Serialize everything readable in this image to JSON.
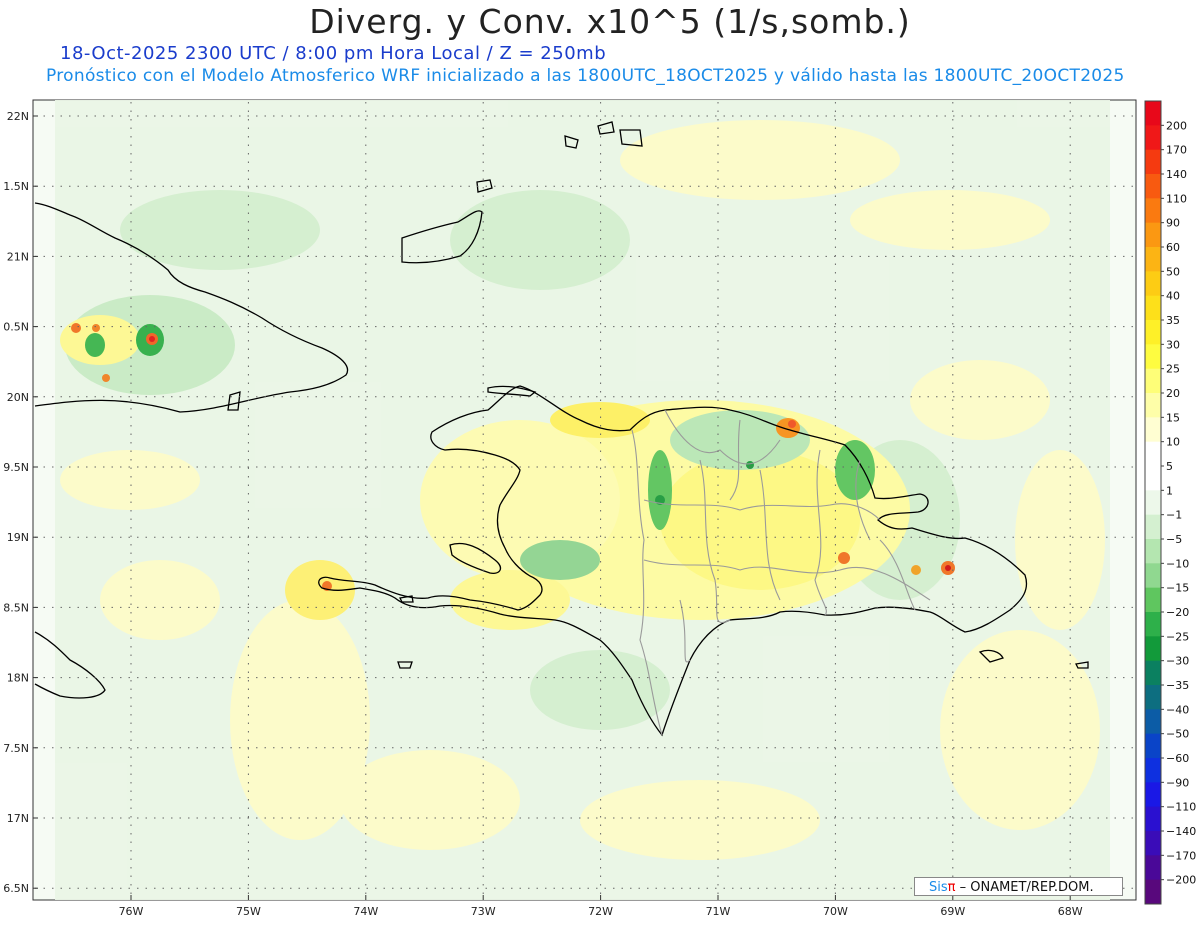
{
  "title": "Diverg. y Conv. x10^5 (1/s,somb.)",
  "subtitle_time": "18-Oct-2025  2300 UTC / 8:00 pm Hora Local / Z = 250mb",
  "subtitle_model": "Pronóstico con el Modelo Atmosferico WRF inicializado a las 1800UTC_18OCT2025 y válido hasta las  1800UTC_20OCT2025",
  "credit": {
    "brand": "Sis",
    "pi": "π",
    "rest": "– ONAMET/REP.DOM."
  },
  "lat_labels": [
    "22N",
    "1.5N",
    "21N",
    "0.5N",
    "20N",
    "9.5N",
    "19N",
    "8.5N",
    "18N",
    "7.5N",
    "17N",
    "6.5N"
  ],
  "lon_labels": [
    "76W",
    "75W",
    "74W",
    "73W",
    "72W",
    "71W",
    "70W",
    "69W",
    "68W"
  ],
  "colorbar": {
    "labels": [
      "200",
      "170",
      "140",
      "110",
      "90",
      "60",
      "50",
      "40",
      "35",
      "30",
      "25",
      "20",
      "15",
      "10",
      "5",
      "1",
      "−1",
      "−5",
      "−10",
      "−15",
      "−20",
      "−25",
      "−30",
      "−35",
      "−40",
      "−50",
      "−60",
      "−90",
      "−110",
      "−140",
      "−170",
      "−200"
    ],
    "colors": [
      "#e8081a",
      "#f01818",
      "#f53a10",
      "#f85a10",
      "#fa7a10",
      "#fb9812",
      "#fcb414",
      "#fdcc14",
      "#fde01a",
      "#fef028",
      "#fefc40",
      "#fefe78",
      "#fefea8",
      "#fffed2",
      "#ffffff",
      "#ffffff",
      "#edf8ea",
      "#d4f0d0",
      "#b4e6b0",
      "#90d890",
      "#5fc65f",
      "#2eb04a",
      "#129a3a",
      "#0b8060",
      "#0d6e80",
      "#0c5ca6",
      "#0a44c8",
      "#0e30e0",
      "#1a18e6",
      "#2a10d0",
      "#3a0cb8",
      "#4a0898",
      "#58087c"
    ]
  },
  "map_theme": {
    "ocean": "#ffffff",
    "light_green": "#e6f5e2",
    "yellow": "#fefcb4",
    "coast": "#000000",
    "province": "#9a9a9a",
    "grid": "#555555"
  }
}
